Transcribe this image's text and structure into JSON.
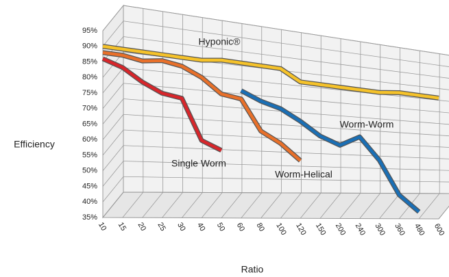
{
  "chart_data": {
    "type": "line3d",
    "x_label": "Ratio",
    "y_label": "Efficiency",
    "categories": [
      "10",
      "15",
      "20",
      "25",
      "30",
      "40",
      "50",
      "60",
      "80",
      "100",
      "120",
      "150",
      "200",
      "240",
      "300",
      "360",
      "480",
      "600"
    ],
    "series": [
      {
        "name": "Single Worm",
        "color": "#d7262b",
        "values": [
          86,
          84,
          80,
          77,
          76,
          62,
          59,
          null,
          null,
          null,
          null,
          null,
          null,
          null,
          null,
          null,
          null,
          null
        ]
      },
      {
        "name": "Worm-Helical",
        "color": "#e8702a",
        "values": [
          88,
          88,
          87,
          88,
          87,
          84,
          79,
          78,
          67,
          63,
          57,
          null,
          null,
          null,
          null,
          null,
          null,
          null
        ]
      },
      {
        "name": "Hyponic®",
        "color": "#f5c22a",
        "values": [
          90,
          90,
          90,
          90,
          90,
          90,
          91,
          91,
          91,
          91,
          87,
          87,
          87,
          87,
          87,
          88,
          88,
          88
        ]
      },
      {
        "name": "Worm-Worm",
        "color": "#1a6fb5",
        "values": [
          null,
          null,
          null,
          null,
          null,
          null,
          null,
          81,
          78,
          76,
          72,
          67,
          64,
          68,
          59,
          45,
          38,
          null
        ]
      }
    ],
    "ylim": [
      35,
      95
    ],
    "yticks": [
      {
        "value": 35,
        "label": "35%"
      },
      {
        "value": 40,
        "label": "40%"
      },
      {
        "value": 45,
        "label": "45%"
      },
      {
        "value": 50,
        "label": "50%"
      },
      {
        "value": 55,
        "label": "55%"
      },
      {
        "value": 60,
        "label": "60%"
      },
      {
        "value": 65,
        "label": "65%"
      },
      {
        "value": 70,
        "label": "70%"
      },
      {
        "value": 75,
        "label": "75%"
      },
      {
        "value": 80,
        "label": "80%"
      },
      {
        "value": 85,
        "label": "85%"
      },
      {
        "value": 90,
        "label": "90%"
      },
      {
        "value": 95,
        "label": "95%"
      }
    ],
    "grid": true
  }
}
